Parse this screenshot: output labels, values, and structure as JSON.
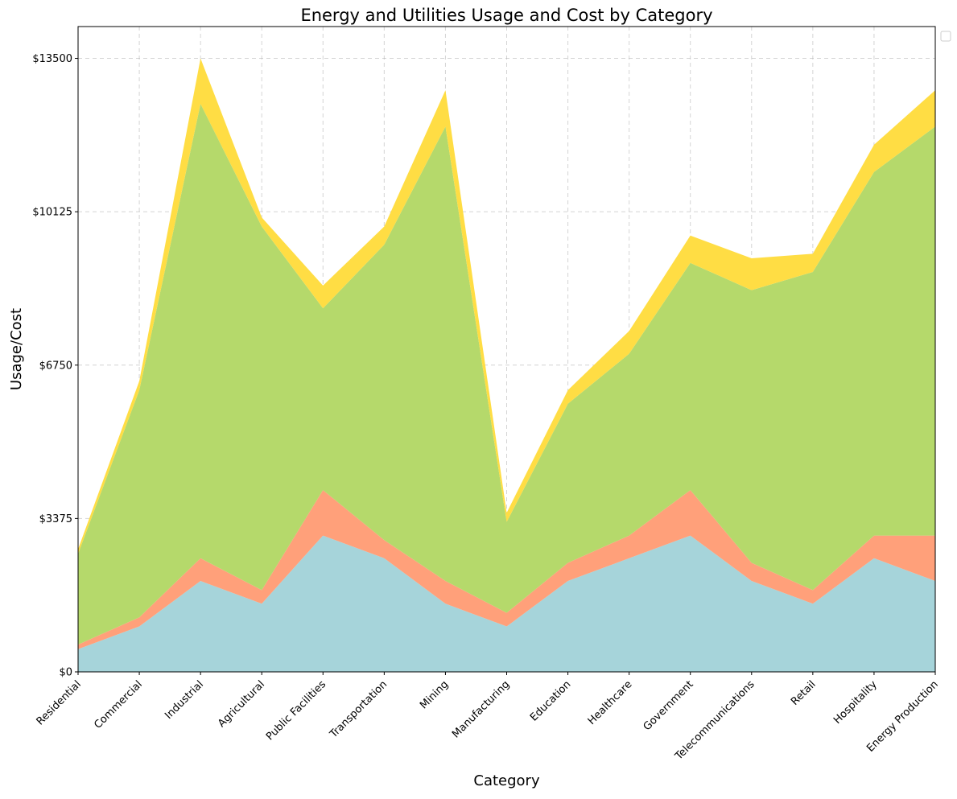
{
  "chart_data": {
    "type": "area",
    "stacked": true,
    "title": "Energy and Utilities Usage and Cost by Category",
    "xlabel": "Category",
    "ylabel": "Usage/Cost",
    "categories": [
      "Residential",
      "Commercial",
      "Industrial",
      "Agricultural",
      "Public Facilities",
      "Transportation",
      "Mining",
      "Manufacturing",
      "Education",
      "Healthcare",
      "Government",
      "Telecommunications",
      "Retail",
      "Hospitality",
      "Energy Production"
    ],
    "series": [
      {
        "color": "#a6d4da",
        "values": [
          500,
          1000,
          2000,
          1500,
          3000,
          2500,
          1500,
          1000,
          2000,
          2500,
          3000,
          2000,
          1500,
          2500,
          2000
        ]
      },
      {
        "color": "#ffa07a",
        "values": [
          100,
          200,
          500,
          300,
          1000,
          400,
          500,
          300,
          400,
          500,
          1000,
          400,
          300,
          500,
          1000
        ]
      },
      {
        "color": "#b5d96b",
        "values": [
          2000,
          5000,
          10000,
          8000,
          4000,
          6500,
          10000,
          2000,
          3500,
          4000,
          5000,
          6000,
          7000,
          8000,
          9000
        ]
      },
      {
        "color": "#ffdd44",
        "values": [
          100,
          200,
          1000,
          200,
          500,
          400,
          800,
          200,
          300,
          500,
          600,
          700,
          400,
          600,
          800
        ]
      }
    ],
    "y_ticks": [
      0,
      3375,
      6750,
      10125,
      13500
    ],
    "y_tick_labels": [
      "$0",
      "$3375",
      "$6750",
      "$10125",
      "$13500"
    ],
    "ylim": [
      0,
      14200
    ],
    "grid": true,
    "legend": "upper-right-outside"
  }
}
